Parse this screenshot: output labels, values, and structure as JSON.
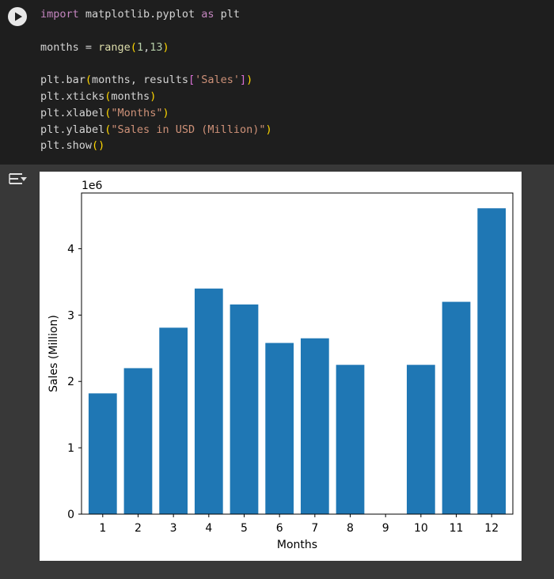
{
  "code_cell": {
    "lines": [
      [
        {
          "t": "import",
          "c": "kw"
        },
        {
          "t": " matplotlib.pyplot "
        },
        {
          "t": "as",
          "c": "kw"
        },
        {
          "t": " plt"
        }
      ],
      [],
      [
        {
          "t": "months = "
        },
        {
          "t": "range",
          "c": "fn"
        },
        {
          "t": "(",
          "c": "par"
        },
        {
          "t": "1",
          "c": "num"
        },
        {
          "t": ","
        },
        {
          "t": "13",
          "c": "num"
        },
        {
          "t": ")",
          "c": "par"
        }
      ],
      [],
      [
        {
          "t": "plt.bar"
        },
        {
          "t": "(",
          "c": "par"
        },
        {
          "t": "months, results"
        },
        {
          "t": "[",
          "c": "brk"
        },
        {
          "t": "'Sales'",
          "c": "str"
        },
        {
          "t": "]",
          "c": "brk"
        },
        {
          "t": ")",
          "c": "par"
        }
      ],
      [
        {
          "t": "plt.xticks"
        },
        {
          "t": "(",
          "c": "par"
        },
        {
          "t": "months"
        },
        {
          "t": ")",
          "c": "par"
        }
      ],
      [
        {
          "t": "plt.xlabel"
        },
        {
          "t": "(",
          "c": "par"
        },
        {
          "t": "\"Months\"",
          "c": "str"
        },
        {
          "t": ")",
          "c": "par"
        }
      ],
      [
        {
          "t": "plt.ylabel"
        },
        {
          "t": "(",
          "c": "par"
        },
        {
          "t": "\"Sales in USD (Million)\"",
          "c": "str"
        },
        {
          "t": ")",
          "c": "par"
        }
      ],
      [
        {
          "t": "plt.show"
        },
        {
          "t": "(",
          "c": "par"
        },
        {
          "t": ")",
          "c": "par"
        }
      ]
    ]
  },
  "icons": {
    "run": "play-icon",
    "output": "output-options-icon"
  },
  "colors": {
    "bar": "#1f77b4",
    "editor_bg": "#1e1e1e",
    "output_bg": "#383838"
  },
  "chart_data": {
    "type": "bar",
    "categories": [
      "1",
      "2",
      "3",
      "4",
      "5",
      "6",
      "7",
      "8",
      "9",
      "10",
      "11",
      "12"
    ],
    "values": [
      1.82,
      2.2,
      2.81,
      3.4,
      3.16,
      2.58,
      2.65,
      2.25,
      0,
      2.25,
      3.2,
      4.61
    ],
    "xlabel": "Months",
    "ylabel": "Sales (Million)",
    "scale_label": "1e6",
    "ylim": [
      0,
      4.84
    ],
    "yticks": [
      0,
      1,
      2,
      3,
      4
    ],
    "grid": false
  }
}
